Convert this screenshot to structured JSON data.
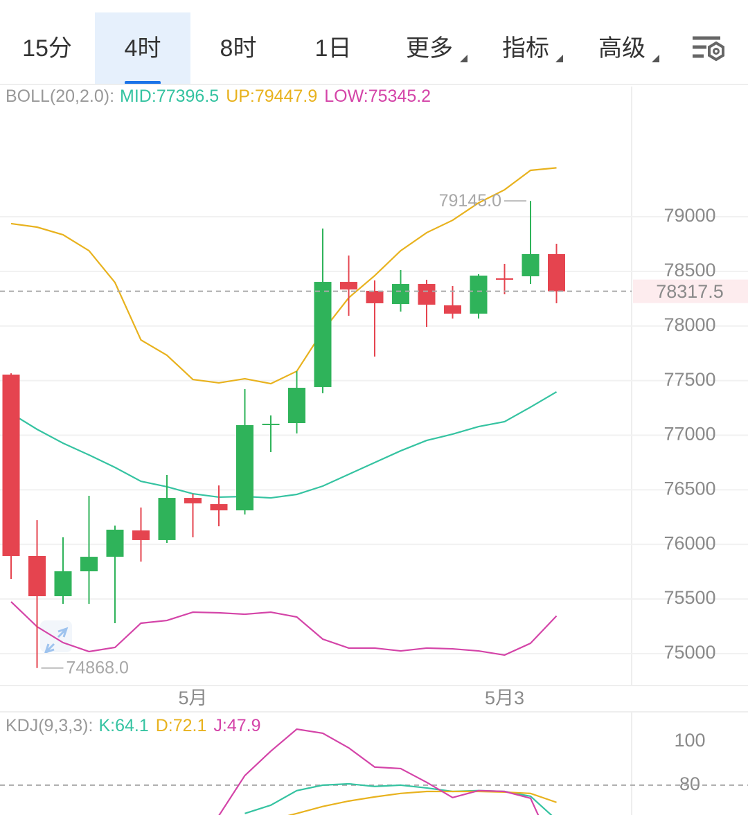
{
  "tabs": [
    "15分",
    "4时",
    "8时",
    "1日",
    "更多",
    "指标",
    "高级"
  ],
  "active_tab": 1,
  "chart_data": [
    {
      "type": "candlestick",
      "indicator": "BOLL(20,2.0):",
      "categories": [
        null,
        null,
        null,
        null,
        null,
        null,
        null,
        "5月",
        null,
        null,
        null,
        null,
        null,
        null,
        null,
        null,
        null,
        null,
        null,
        "5月3",
        null,
        null
      ],
      "open": [
        77555,
        75894,
        75526,
        75754,
        75887,
        76128,
        76040,
        76426,
        76369,
        76312,
        77098,
        77111,
        77441,
        78404,
        78322,
        78201,
        78385,
        78189,
        78113,
        78436,
        78455,
        78658
      ],
      "high": [
        77567,
        76223,
        76065,
        76445,
        76173,
        76338,
        76636,
        76464,
        76540,
        77422,
        77181,
        77586,
        78892,
        78645,
        78417,
        78512,
        78423,
        78366,
        78474,
        78569,
        79145,
        78753
      ],
      "low": [
        75685,
        74868,
        75456,
        75456,
        75279,
        75843,
        76014,
        76065,
        76166,
        76274,
        76845,
        77016,
        77384,
        78093,
        77720,
        78132,
        77992,
        78068,
        78068,
        78290,
        78385,
        78208
      ],
      "close": [
        75894,
        75526,
        75754,
        75887,
        76135,
        76040,
        76426,
        76376,
        76312,
        77092,
        77105,
        77434,
        78404,
        78334,
        78208,
        78385,
        78195,
        78113,
        78461,
        78430,
        78658,
        78317.5
      ],
      "up_color": "#2fb35a",
      "down_color": "#e5444f",
      "series": [
        {
          "name": "MID:",
          "color": "#35c3a1",
          "values": [
            77200,
            77054,
            76927,
            76819,
            76705,
            76578,
            76528,
            76464,
            76433,
            76439,
            76426,
            76458,
            76534,
            76642,
            76750,
            76857,
            76952,
            77010,
            77079,
            77124,
            77257,
            77396.5
          ]
        },
        {
          "name": "UP:",
          "color": "#e8b21e",
          "values": [
            78937,
            78905,
            78835,
            78689,
            78398,
            77872,
            77732,
            77510,
            77479,
            77517,
            77472,
            77586,
            77954,
            78258,
            78461,
            78689,
            78854,
            78968,
            79127,
            79247,
            79425,
            79447.9
          ]
        },
        {
          "name": "LOW:",
          "color": "#d444a8",
          "values": [
            75475,
            75247,
            75101,
            75019,
            75057,
            75279,
            75304,
            75380,
            75374,
            75361,
            75380,
            75336,
            75133,
            75051,
            75051,
            75025,
            75051,
            75044,
            75025,
            74987,
            75095,
            75345.2
          ]
        }
      ],
      "last_price": 78317.5,
      "max_label": {
        "value": 79145,
        "label": "79145.0"
      },
      "min_label": {
        "value": 74868,
        "label": "74868.0"
      },
      "ylim": [
        74721,
        80192
      ],
      "yticks": [
        75000,
        75500,
        76000,
        76500,
        77000,
        77500,
        78000,
        78500,
        79000
      ],
      "grid": true
    },
    {
      "type": "line",
      "indicator": "KDJ(9,3,3):",
      "series": [
        {
          "name": "K:",
          "color": "#35c3a1",
          "values": [
            null,
            null,
            null,
            null,
            null,
            null,
            null,
            null,
            null,
            67,
            70.8,
            77.5,
            80,
            80.6,
            79.4,
            80,
            78.7,
            77.1,
            77.5,
            77.1,
            74.9,
            64.1
          ]
        },
        {
          "name": "D:",
          "color": "#e8b21e",
          "values": [
            null,
            null,
            null,
            null,
            null,
            null,
            null,
            null,
            null,
            null,
            64,
            67,
            70.2,
            72.7,
            74.6,
            76.2,
            77.1,
            77.1,
            77.1,
            76.8,
            76.2,
            72.1
          ]
        },
        {
          "name": "J:",
          "color": "#d444a8",
          "values": [
            null,
            null,
            null,
            null,
            null,
            null,
            null,
            null,
            66,
            84.4,
            95.6,
            105.7,
            103.8,
            97.1,
            88.3,
            87.6,
            81.3,
            74.3,
            77.5,
            77.1,
            74,
            47.9
          ]
        }
      ],
      "ylim": [
        66.3,
        113
      ],
      "yticks": [
        100,
        80
      ],
      "reference_line": 80,
      "grid": false
    }
  ]
}
